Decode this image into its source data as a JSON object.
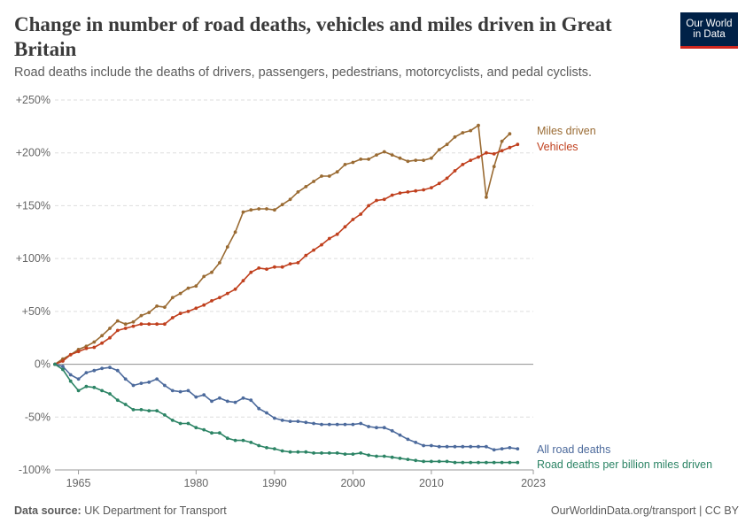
{
  "header": {
    "title": "Change in number of road deaths, vehicles and miles driven in Great Britain",
    "subtitle": "Road deaths include the deaths of drivers, passengers, pedestrians, motorcyclists, and pedal cyclists.",
    "logo_line1": "Our World",
    "logo_line2": "in Data"
  },
  "footer": {
    "source_label": "Data source:",
    "source_text": "UK Department for Transport",
    "right_text": "OurWorldinData.org/transport | CC BY"
  },
  "colors": {
    "miles": "#9a6b33",
    "vehicles": "#c0401e",
    "deaths": "#4c6a9c",
    "deaths_per_mile": "#2c8465",
    "grid": "#dddddd",
    "zero_line": "#8f8f8f"
  },
  "chart_data": {
    "type": "line",
    "xlim": [
      1962,
      2023
    ],
    "ylim": [
      -100,
      250
    ],
    "x_ticks": [
      1965,
      1980,
      1990,
      2000,
      2010,
      2023
    ],
    "x_tick_labels": [
      "1965",
      "1980",
      "1990",
      "2000",
      "2010",
      "2023"
    ],
    "y_ticks": [
      -100,
      -50,
      0,
      50,
      100,
      150,
      200,
      250
    ],
    "y_tick_labels": [
      "-100%",
      "-50%",
      "0%",
      "+50%",
      "+100%",
      "+150%",
      "+200%",
      "+250%"
    ],
    "grid": true,
    "legend": "inline labels at right end of lines",
    "series": [
      {
        "name": "Miles driven",
        "key": "miles",
        "points": [
          [
            1962,
            0
          ],
          [
            1963,
            5
          ],
          [
            1964,
            9
          ],
          [
            1965,
            14
          ],
          [
            1966,
            17
          ],
          [
            1967,
            21
          ],
          [
            1968,
            27
          ],
          [
            1969,
            34
          ],
          [
            1970,
            41
          ],
          [
            1971,
            38
          ],
          [
            1972,
            40
          ],
          [
            1973,
            46
          ],
          [
            1974,
            49
          ],
          [
            1975,
            55
          ],
          [
            1976,
            54
          ],
          [
            1977,
            63
          ],
          [
            1978,
            67
          ],
          [
            1979,
            72
          ],
          [
            1980,
            74
          ],
          [
            1981,
            83
          ],
          [
            1982,
            87
          ],
          [
            1983,
            96
          ],
          [
            1984,
            111
          ],
          [
            1985,
            125
          ],
          [
            1986,
            144
          ],
          [
            1987,
            146
          ],
          [
            1988,
            147
          ],
          [
            1989,
            147
          ],
          [
            1990,
            146
          ],
          [
            1991,
            151
          ],
          [
            1992,
            156
          ],
          [
            1993,
            163
          ],
          [
            1994,
            168
          ],
          [
            1995,
            173
          ],
          [
            1996,
            178
          ],
          [
            1997,
            178
          ],
          [
            1998,
            182
          ],
          [
            1999,
            189
          ],
          [
            2000,
            191
          ],
          [
            2001,
            194
          ],
          [
            2002,
            194
          ],
          [
            2003,
            198
          ],
          [
            2004,
            201
          ],
          [
            2005,
            198
          ],
          [
            2006,
            195
          ],
          [
            2007,
            192
          ],
          [
            2008,
            193
          ],
          [
            2009,
            193
          ],
          [
            2010,
            195
          ],
          [
            2011,
            203
          ],
          [
            2012,
            208
          ],
          [
            2013,
            215
          ],
          [
            2014,
            219
          ],
          [
            2015,
            221
          ],
          [
            2016,
            226
          ],
          [
            2017,
            158
          ],
          [
            2018,
            187
          ],
          [
            2019,
            211
          ],
          [
            2020,
            218
          ]
        ]
      },
      {
        "name": "Vehicles",
        "key": "vehicles",
        "points": [
          [
            1962,
            0
          ],
          [
            1963,
            3
          ],
          [
            1964,
            9
          ],
          [
            1965,
            12
          ],
          [
            1966,
            15
          ],
          [
            1967,
            16
          ],
          [
            1968,
            20
          ],
          [
            1969,
            25
          ],
          [
            1970,
            32
          ],
          [
            1971,
            34
          ],
          [
            1972,
            36
          ],
          [
            1973,
            38
          ],
          [
            1974,
            38
          ],
          [
            1975,
            38
          ],
          [
            1976,
            38
          ],
          [
            1977,
            44
          ],
          [
            1978,
            48
          ],
          [
            1979,
            50
          ],
          [
            1980,
            53
          ],
          [
            1981,
            56
          ],
          [
            1982,
            60
          ],
          [
            1983,
            63
          ],
          [
            1984,
            67
          ],
          [
            1985,
            71
          ],
          [
            1986,
            79
          ],
          [
            1987,
            87
          ],
          [
            1988,
            91
          ],
          [
            1989,
            90
          ],
          [
            1990,
            92
          ],
          [
            1991,
            92
          ],
          [
            1992,
            95
          ],
          [
            1993,
            96
          ],
          [
            1994,
            103
          ],
          [
            1995,
            108
          ],
          [
            1996,
            113
          ],
          [
            1997,
            119
          ],
          [
            1998,
            123
          ],
          [
            1999,
            130
          ],
          [
            2000,
            137
          ],
          [
            2001,
            142
          ],
          [
            2002,
            150
          ],
          [
            2003,
            155
          ],
          [
            2004,
            156
          ],
          [
            2005,
            160
          ],
          [
            2006,
            162
          ],
          [
            2007,
            163
          ],
          [
            2008,
            164
          ],
          [
            2009,
            165
          ],
          [
            2010,
            167
          ],
          [
            2011,
            171
          ],
          [
            2012,
            176
          ],
          [
            2013,
            183
          ],
          [
            2014,
            189
          ],
          [
            2015,
            193
          ],
          [
            2016,
            196
          ],
          [
            2017,
            200
          ],
          [
            2018,
            199
          ],
          [
            2019,
            202
          ],
          [
            2020,
            205
          ],
          [
            2021,
            208
          ]
        ]
      },
      {
        "name": "All road deaths",
        "key": "deaths",
        "points": [
          [
            1962,
            0
          ],
          [
            1963,
            -2
          ],
          [
            1964,
            -10
          ],
          [
            1965,
            -14
          ],
          [
            1966,
            -8
          ],
          [
            1967,
            -6
          ],
          [
            1968,
            -4
          ],
          [
            1969,
            -3
          ],
          [
            1970,
            -6
          ],
          [
            1971,
            -14
          ],
          [
            1972,
            -20
          ],
          [
            1973,
            -18
          ],
          [
            1974,
            -17
          ],
          [
            1975,
            -14
          ],
          [
            1976,
            -20
          ],
          [
            1977,
            -25
          ],
          [
            1978,
            -26
          ],
          [
            1979,
            -25
          ],
          [
            1980,
            -31
          ],
          [
            1981,
            -29
          ],
          [
            1982,
            -35
          ],
          [
            1983,
            -32
          ],
          [
            1984,
            -35
          ],
          [
            1985,
            -36
          ],
          [
            1986,
            -32
          ],
          [
            1987,
            -34
          ],
          [
            1988,
            -42
          ],
          [
            1989,
            -46
          ],
          [
            1990,
            -51
          ],
          [
            1991,
            -53
          ],
          [
            1992,
            -54
          ],
          [
            1993,
            -54
          ],
          [
            1994,
            -55
          ],
          [
            1995,
            -56
          ],
          [
            1996,
            -57
          ],
          [
            1997,
            -57
          ],
          [
            1998,
            -57
          ],
          [
            1999,
            -57
          ],
          [
            2000,
            -57
          ],
          [
            2001,
            -56
          ],
          [
            2002,
            -59
          ],
          [
            2003,
            -60
          ],
          [
            2004,
            -60
          ],
          [
            2005,
            -63
          ],
          [
            2006,
            -67
          ],
          [
            2007,
            -71
          ],
          [
            2008,
            -74
          ],
          [
            2009,
            -77
          ],
          [
            2010,
            -77
          ],
          [
            2011,
            -78
          ],
          [
            2012,
            -78
          ],
          [
            2013,
            -78
          ],
          [
            2014,
            -78
          ],
          [
            2015,
            -78
          ],
          [
            2016,
            -78
          ],
          [
            2017,
            -78
          ],
          [
            2018,
            -81
          ],
          [
            2019,
            -80
          ],
          [
            2020,
            -79
          ],
          [
            2021,
            -80
          ]
        ]
      },
      {
        "name": "Road deaths per billion miles driven",
        "key": "deaths_per_mile",
        "points": [
          [
            1962,
            0
          ],
          [
            1963,
            -5
          ],
          [
            1964,
            -16
          ],
          [
            1965,
            -25
          ],
          [
            1966,
            -21
          ],
          [
            1967,
            -22
          ],
          [
            1968,
            -25
          ],
          [
            1969,
            -28
          ],
          [
            1970,
            -34
          ],
          [
            1971,
            -38
          ],
          [
            1972,
            -43
          ],
          [
            1973,
            -43
          ],
          [
            1974,
            -44
          ],
          [
            1975,
            -44
          ],
          [
            1976,
            -48
          ],
          [
            1977,
            -53
          ],
          [
            1978,
            -56
          ],
          [
            1979,
            -56
          ],
          [
            1980,
            -60
          ],
          [
            1981,
            -62
          ],
          [
            1982,
            -65
          ],
          [
            1983,
            -65
          ],
          [
            1984,
            -70
          ],
          [
            1985,
            -72
          ],
          [
            1986,
            -72
          ],
          [
            1987,
            -74
          ],
          [
            1988,
            -77
          ],
          [
            1989,
            -79
          ],
          [
            1990,
            -80
          ],
          [
            1991,
            -82
          ],
          [
            1992,
            -83
          ],
          [
            1993,
            -83
          ],
          [
            1994,
            -83
          ],
          [
            1995,
            -84
          ],
          [
            1996,
            -84
          ],
          [
            1997,
            -84
          ],
          [
            1998,
            -84
          ],
          [
            1999,
            -85
          ],
          [
            2000,
            -85
          ],
          [
            2001,
            -84
          ],
          [
            2002,
            -86
          ],
          [
            2003,
            -87
          ],
          [
            2004,
            -87
          ],
          [
            2005,
            -88
          ],
          [
            2006,
            -89
          ],
          [
            2007,
            -90
          ],
          [
            2008,
            -91
          ],
          [
            2009,
            -92
          ],
          [
            2010,
            -92
          ],
          [
            2011,
            -92
          ],
          [
            2012,
            -92
          ],
          [
            2013,
            -93
          ],
          [
            2014,
            -93
          ],
          [
            2015,
            -93
          ],
          [
            2016,
            -93
          ],
          [
            2017,
            -93
          ],
          [
            2018,
            -93
          ],
          [
            2019,
            -93
          ],
          [
            2020,
            -93
          ],
          [
            2021,
            -93
          ]
        ]
      }
    ]
  }
}
